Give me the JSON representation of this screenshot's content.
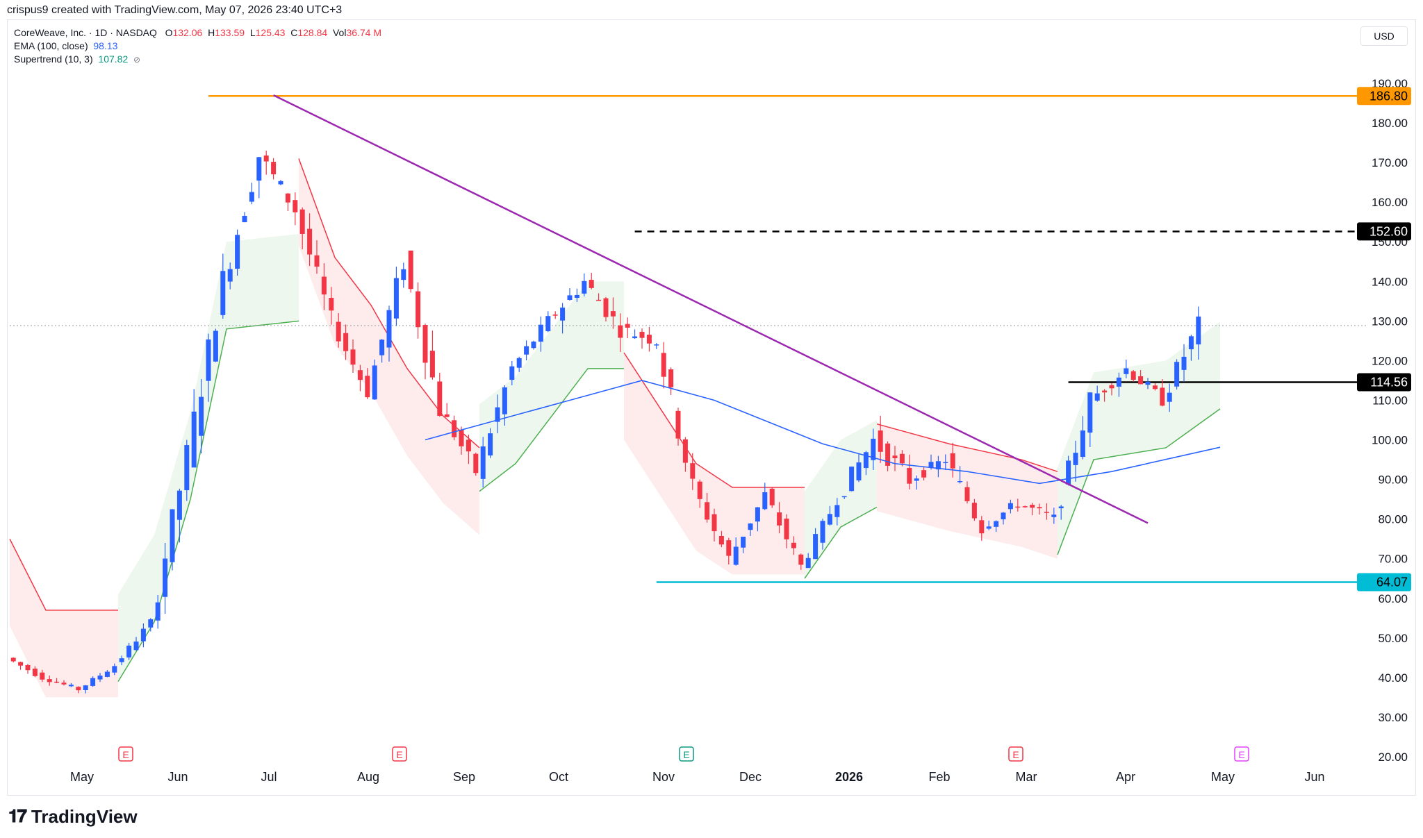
{
  "header": {
    "credit": "crispus9 created with TradingView.com, May 07, 2026 23:40 UTC+3"
  },
  "legend": {
    "symbol": "CoreWeave, Inc. · 1D · NASDAQ",
    "o_label": "O",
    "o": "132.06",
    "h_label": "H",
    "h": "133.59",
    "l_label": "L",
    "l": "125.43",
    "c_label": "C",
    "c": "128.84",
    "vol_label": "Vol",
    "vol": "36.74 M",
    "ema_label": "EMA (100, close)",
    "ema": "98.13",
    "st_label": "Supertrend (10, 3)",
    "st": "107.82",
    "st_icon": "hide-icon"
  },
  "currency": "USD",
  "brand": "TradingView",
  "colors": {
    "up": "#2962ff",
    "down": "#f23645",
    "ema": "#2962ff",
    "st_up": "#4caf50",
    "st_down": "#f23645",
    "resistance": "#ff9800",
    "trendline": "#9c27b0",
    "support": "#00bcd4",
    "level": "#000000"
  },
  "chart_data": {
    "type": "candlestick",
    "title": "CoreWeave, Inc. · 1D · NASDAQ",
    "ylim": [
      20,
      190
    ],
    "y_ticks": [
      "20.00",
      "30.00",
      "40.00",
      "50.00",
      "60.00",
      "70.00",
      "80.00",
      "90.00",
      "100.00",
      "110.00",
      "120.00",
      "130.00",
      "140.00",
      "150.00",
      "160.00",
      "170.00",
      "180.00",
      "190.00"
    ],
    "x_ticks": [
      "May",
      "Jun",
      "Jul",
      "Aug",
      "Sep",
      "Oct",
      "Nov",
      "Dec",
      "2026",
      "Feb",
      "Mar",
      "Apr",
      "May",
      "Jun"
    ],
    "price_labels": [
      "186.80",
      "152.60",
      "114.56",
      "64.07"
    ],
    "last_price": 128.84,
    "ohlc_weekly": [
      [
        45,
        48,
        38,
        40
      ],
      [
        40,
        42,
        34,
        37
      ],
      [
        37,
        44,
        36,
        43
      ],
      [
        43,
        55,
        42,
        54
      ],
      [
        54,
        100,
        52,
        96
      ],
      [
        96,
        147,
        94,
        140
      ],
      [
        140,
        187,
        138,
        172
      ],
      [
        172,
        180,
        150,
        158
      ],
      [
        158,
        160,
        124,
        130
      ],
      [
        130,
        132,
        108,
        112
      ],
      [
        112,
        150,
        110,
        145
      ],
      [
        145,
        147,
        100,
        108
      ],
      [
        108,
        112,
        84,
        92
      ],
      [
        92,
        122,
        88,
        118
      ],
      [
        118,
        138,
        115,
        130
      ],
      [
        130,
        153,
        125,
        140
      ],
      [
        140,
        150,
        120,
        128
      ],
      [
        128,
        140,
        116,
        125
      ],
      [
        125,
        126,
        80,
        88
      ],
      [
        88,
        90,
        65,
        70
      ],
      [
        70,
        92,
        66,
        86
      ],
      [
        86,
        88,
        64,
        68
      ],
      [
        68,
        90,
        70,
        85
      ],
      [
        85,
        112,
        82,
        100
      ],
      [
        100,
        110,
        75,
        90
      ],
      [
        90,
        100,
        80,
        95
      ],
      [
        95,
        102,
        70,
        78
      ],
      [
        78,
        90,
        72,
        84
      ],
      [
        84,
        88,
        68,
        80
      ],
      [
        80,
        112,
        74,
        110
      ],
      [
        110,
        124,
        100,
        118
      ],
      [
        118,
        124,
        102,
        110
      ],
      [
        110,
        138,
        105,
        129
      ]
    ],
    "ema_100": [
      [
        11.5,
        100
      ],
      [
        15.5,
        110
      ],
      [
        17.5,
        115
      ],
      [
        19.5,
        110
      ],
      [
        22.5,
        99
      ],
      [
        24.5,
        94
      ],
      [
        26.5,
        92
      ],
      [
        28.5,
        89
      ],
      [
        30.5,
        92
      ],
      [
        33.5,
        98.13
      ]
    ],
    "supertrend": [
      {
        "dir": "down",
        "pts": [
          [
            0,
            75
          ],
          [
            1,
            57
          ],
          [
            3,
            57
          ]
        ]
      },
      {
        "dir": "up",
        "pts": [
          [
            3,
            39
          ],
          [
            4,
            54
          ],
          [
            5,
            85
          ],
          [
            6,
            128
          ],
          [
            8,
            130
          ]
        ]
      },
      {
        "dir": "down",
        "pts": [
          [
            8,
            171
          ],
          [
            9,
            146
          ],
          [
            10,
            134
          ],
          [
            11,
            118
          ],
          [
            12,
            106
          ],
          [
            13,
            98
          ]
        ]
      },
      {
        "dir": "up",
        "pts": [
          [
            13,
            87
          ],
          [
            14,
            94
          ],
          [
            15,
            106
          ],
          [
            16,
            118
          ],
          [
            17,
            118
          ]
        ]
      },
      {
        "dir": "down",
        "pts": [
          [
            17,
            122
          ],
          [
            19,
            94
          ],
          [
            20,
            88
          ],
          [
            22,
            88
          ]
        ]
      },
      {
        "dir": "up",
        "pts": [
          [
            22,
            65
          ],
          [
            23,
            78
          ],
          [
            24,
            83
          ]
        ]
      },
      {
        "dir": "down",
        "pts": [
          [
            24,
            104
          ],
          [
            26,
            99
          ],
          [
            28,
            95
          ],
          [
            29,
            92
          ]
        ]
      },
      {
        "dir": "up",
        "pts": [
          [
            29,
            71
          ],
          [
            30,
            95
          ],
          [
            32,
            98
          ],
          [
            33.5,
            107.82
          ]
        ]
      }
    ],
    "trendline": [
      [
        7.3,
        187
      ],
      [
        31.5,
        79
      ]
    ],
    "levels": [
      {
        "value": 186.8,
        "from": 5.5,
        "to": 36,
        "style": "solid",
        "color": "#ff9800"
      },
      {
        "value": 152.6,
        "from": 17.3,
        "to": 36,
        "style": "dashed",
        "color": "#000000"
      },
      {
        "value": 114.56,
        "from": 29.3,
        "to": 36,
        "style": "solid",
        "color": "#000000"
      },
      {
        "value": 64.07,
        "from": 17.9,
        "to": 36,
        "style": "solid",
        "color": "#00bcd4"
      }
    ],
    "events": [
      {
        "label": "E",
        "x": 4
      },
      {
        "label": "E",
        "x": 12.8
      },
      {
        "label": "E",
        "x": 22.1
      },
      {
        "label": "E",
        "x": 32.7
      },
      {
        "label": "E",
        "x": 39.9
      }
    ],
    "grid": false
  }
}
